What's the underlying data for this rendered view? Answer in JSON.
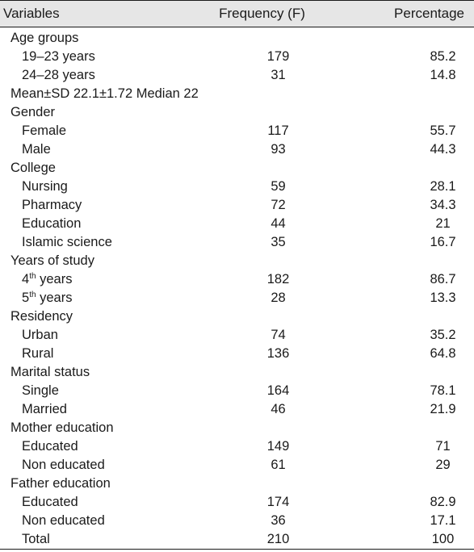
{
  "header": {
    "variables": "Variables",
    "frequency": "Frequency (F)",
    "percentage": "Percentage"
  },
  "rows": [
    {
      "label": "Age groups"
    },
    {
      "label": "19–23 years",
      "freq": "179",
      "pct": "85.2"
    },
    {
      "label": "24–28 years",
      "freq": "31",
      "pct": "14.8"
    },
    {
      "label": "Mean±SD 22.1±1.72 Median 22"
    },
    {
      "label": "Gender"
    },
    {
      "label": "Female",
      "freq": "117",
      "pct": "55.7"
    },
    {
      "label": "Male",
      "freq": "93",
      "pct": "44.3"
    },
    {
      "label": "College"
    },
    {
      "label": "Nursing",
      "freq": "59",
      "pct": "28.1"
    },
    {
      "label": "Pharmacy",
      "freq": "72",
      "pct": "34.3"
    },
    {
      "label": "Education",
      "freq": "44",
      "pct": "21"
    },
    {
      "label": "Islamic science",
      "freq": "35",
      "pct": "16.7"
    },
    {
      "label": "Years of study"
    },
    {
      "label": "4",
      "sup": "th",
      "suffix": " years",
      "freq": "182",
      "pct": "86.7"
    },
    {
      "label": "5",
      "sup": "th",
      "suffix": " years",
      "freq": "28",
      "pct": "13.3"
    },
    {
      "label": "Residency"
    },
    {
      "label": "Urban",
      "freq": "74",
      "pct": "35.2"
    },
    {
      "label": "Rural",
      "freq": "136",
      "pct": "64.8"
    },
    {
      "label": "Marital status"
    },
    {
      "label": "Single",
      "freq": "164",
      "pct": "78.1"
    },
    {
      "label": "Married",
      "freq": "46",
      "pct": "21.9"
    },
    {
      "label": "Mother education"
    },
    {
      "label": "Educated",
      "freq": "149",
      "pct": "71"
    },
    {
      "label": "Non educated",
      "freq": "61",
      "pct": "29"
    },
    {
      "label": "Father education"
    },
    {
      "label": "Educated",
      "freq": "174",
      "pct": "82.9"
    },
    {
      "label": "Non educated",
      "freq": "36",
      "pct": "17.1"
    },
    {
      "label": "Total",
      "freq": "210",
      "pct": "100"
    }
  ]
}
